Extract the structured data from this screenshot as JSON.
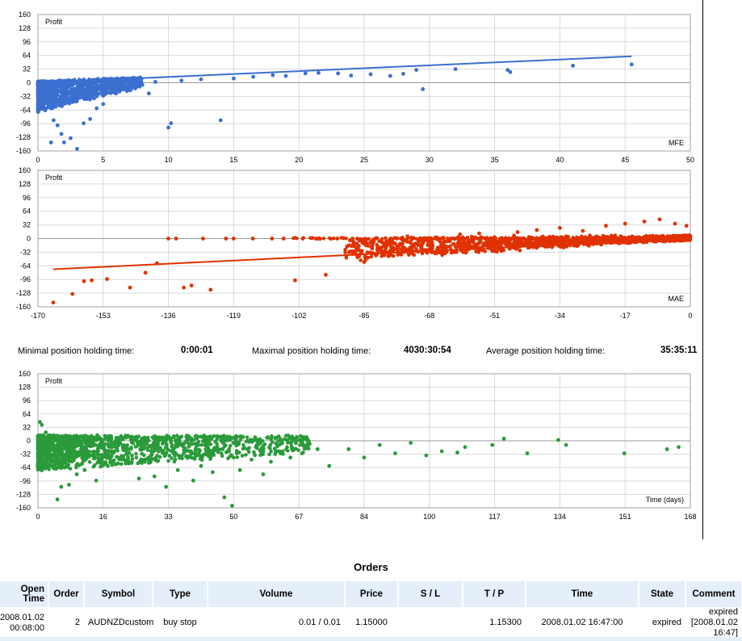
{
  "charts": [
    {
      "key": "mfe",
      "ylabel": "Profit",
      "xlabel": "MFE",
      "color": "#3b6fd0",
      "x_ticks": [
        "0",
        "5",
        "10",
        "15",
        "20",
        "25",
        "30",
        "35",
        "40",
        "45",
        "50"
      ],
      "y_ticks": [
        "160",
        "128",
        "96",
        "64",
        "32",
        "0",
        "-32",
        "-64",
        "-96",
        "-128",
        "-160"
      ]
    },
    {
      "key": "mae",
      "ylabel": "Profit",
      "xlabel": "MAE",
      "color": "#e03200",
      "x_ticks": [
        "-170",
        "-153",
        "-136",
        "-119",
        "-102",
        "-85",
        "-68",
        "-51",
        "-34",
        "-17",
        "0"
      ],
      "y_ticks": [
        "160",
        "128",
        "96",
        "64",
        "32",
        "0",
        "-32",
        "-64",
        "-96",
        "-128",
        "-160"
      ]
    },
    {
      "key": "time",
      "ylabel": "Profit",
      "xlabel": "Time (days)",
      "color": "#2a9a3a",
      "x_ticks": [
        "0",
        "16",
        "33",
        "50",
        "67",
        "84",
        "100",
        "117",
        "134",
        "151",
        "168"
      ],
      "y_ticks": [
        "160",
        "128",
        "96",
        "64",
        "32",
        "0",
        "-32",
        "-64",
        "-96",
        "-128",
        "-160"
      ]
    }
  ],
  "chart_data": [
    {
      "type": "scatter",
      "title": "",
      "xlabel": "MFE",
      "ylabel": "Profit",
      "xlim": [
        0,
        50
      ],
      "ylim": [
        -160,
        160
      ],
      "grid": true,
      "series": [
        {
          "points": [
            [
              0.5,
              -20
            ],
            [
              0.8,
              -45
            ],
            [
              1.0,
              -60
            ],
            [
              1.2,
              -88
            ],
            [
              1.5,
              -100
            ],
            [
              1.8,
              -120
            ],
            [
              2.0,
              -140
            ],
            [
              2.5,
              -130
            ],
            [
              3.0,
              -155
            ],
            [
              1.0,
              -140
            ],
            [
              3.5,
              -95
            ],
            [
              4.0,
              -85
            ],
            [
              4.5,
              -60
            ],
            [
              5.0,
              -50
            ],
            [
              6.0,
              -25
            ],
            [
              6.5,
              -15
            ],
            [
              7.0,
              -10
            ],
            [
              8.5,
              -25
            ],
            [
              10.0,
              -105
            ],
            [
              10.2,
              -95
            ],
            [
              14.0,
              -88
            ],
            [
              8.0,
              -5
            ],
            [
              9.0,
              2
            ],
            [
              11.0,
              5
            ],
            [
              12.5,
              8
            ],
            [
              15.0,
              10
            ],
            [
              16.5,
              14
            ],
            [
              18.0,
              18
            ],
            [
              19.0,
              16
            ],
            [
              20.5,
              22
            ],
            [
              21.5,
              23
            ],
            [
              23.0,
              22
            ],
            [
              24.0,
              17
            ],
            [
              25.5,
              20
            ],
            [
              27.0,
              16
            ],
            [
              28.0,
              21
            ],
            [
              29.0,
              30
            ],
            [
              29.5,
              -15
            ],
            [
              32.0,
              32
            ],
            [
              36.0,
              30
            ],
            [
              36.2,
              25
            ],
            [
              41.0,
              40
            ],
            [
              45.5,
              43
            ]
          ]
        }
      ],
      "trendline": [
        [
          0,
          0
        ],
        [
          45.5,
          62
        ]
      ]
    },
    {
      "type": "scatter",
      "title": "",
      "xlabel": "MAE",
      "ylabel": "Profit",
      "xlim": [
        -170,
        0
      ],
      "ylim": [
        -160,
        160
      ],
      "grid": true,
      "series": [
        {
          "points": [
            [
              -166,
              -150
            ],
            [
              -161,
              -130
            ],
            [
              -158,
              -100
            ],
            [
              -156,
              -98
            ],
            [
              -152,
              -95
            ],
            [
              -146,
              -115
            ],
            [
              -142,
              -80
            ],
            [
              -139,
              -58
            ],
            [
              -136,
              0
            ],
            [
              -134,
              0
            ],
            [
              -132,
              -115
            ],
            [
              -130,
              -110
            ],
            [
              -127,
              0
            ],
            [
              -125,
              -120
            ],
            [
              -121,
              0
            ],
            [
              -119,
              0
            ],
            [
              -114,
              0
            ],
            [
              -109,
              0
            ],
            [
              -106,
              0
            ],
            [
              -103,
              -98
            ],
            [
              -101,
              0
            ],
            [
              -97,
              0
            ],
            [
              -95,
              -85
            ],
            [
              -92,
              0
            ],
            [
              -88,
              0
            ],
            [
              -85,
              -55
            ],
            [
              -82,
              0
            ],
            [
              -78,
              0
            ],
            [
              -75,
              -30
            ],
            [
              -70,
              0
            ],
            [
              -66,
              -28
            ],
            [
              -60,
              10
            ],
            [
              -55,
              12
            ],
            [
              -50,
              -15
            ],
            [
              -45,
              15
            ],
            [
              -40,
              20
            ],
            [
              -34,
              25
            ],
            [
              -28,
              18
            ],
            [
              -22,
              30
            ],
            [
              -17,
              35
            ],
            [
              -12,
              40
            ],
            [
              -8,
              45
            ],
            [
              -4,
              35
            ],
            [
              -1,
              30
            ]
          ]
        }
      ],
      "trendline": [
        [
          -166,
          -72
        ],
        [
          0,
          0
        ]
      ]
    },
    {
      "type": "scatter",
      "title": "",
      "xlabel": "Time (days)",
      "ylabel": "Profit",
      "xlim": [
        0,
        168
      ],
      "ylim": [
        -160,
        160
      ],
      "grid": true,
      "series": [
        {
          "points": [
            [
              0.5,
              45
            ],
            [
              1,
              38
            ],
            [
              2,
              20
            ],
            [
              3,
              -20
            ],
            [
              4,
              -60
            ],
            [
              5,
              -140
            ],
            [
              6,
              -110
            ],
            [
              8,
              -105
            ],
            [
              10,
              -80
            ],
            [
              12,
              -70
            ],
            [
              15,
              -95
            ],
            [
              18,
              -60
            ],
            [
              22,
              -45
            ],
            [
              26,
              -90
            ],
            [
              30,
              -85
            ],
            [
              33,
              -110
            ],
            [
              36,
              -70
            ],
            [
              40,
              -95
            ],
            [
              42,
              -60
            ],
            [
              45,
              -75
            ],
            [
              48,
              -135
            ],
            [
              50,
              -155
            ],
            [
              52,
              -70
            ],
            [
              55,
              -45
            ],
            [
              58,
              -80
            ],
            [
              60,
              -50
            ],
            [
              62,
              -25
            ],
            [
              65,
              -40
            ],
            [
              68,
              -30
            ],
            [
              72,
              -20
            ],
            [
              75,
              -60
            ],
            [
              80,
              -20
            ],
            [
              84,
              -40
            ],
            [
              88,
              -10
            ],
            [
              92,
              -30
            ],
            [
              96,
              -5
            ],
            [
              100,
              -35
            ],
            [
              104,
              -25
            ],
            [
              108,
              -28
            ],
            [
              110,
              -15
            ],
            [
              117,
              -10
            ],
            [
              120,
              5
            ],
            [
              126,
              -30
            ],
            [
              134,
              2
            ],
            [
              136,
              -10
            ],
            [
              151,
              -30
            ],
            [
              162,
              -20
            ],
            [
              165,
              -15
            ]
          ]
        }
      ]
    }
  ],
  "stats": {
    "min_label": "Minimal position holding time:",
    "min_value": "0:00:01",
    "max_label": "Maximal position holding time:",
    "max_value": "4030:30:54",
    "avg_label": "Average position holding time:",
    "avg_value": "35:35:11"
  },
  "orders": {
    "title": "Orders",
    "columns": [
      "Open Time",
      "Order",
      "Symbol",
      "Type",
      "Volume",
      "Price",
      "S / L",
      "T / P",
      "Time",
      "State",
      "Comment"
    ],
    "row": {
      "open_time": "2008.01.02 00:08:00",
      "order": "2",
      "symbol": "AUDNZDcustom",
      "type": "buy stop",
      "volume": "0.01 / 0.01",
      "price": "1.15000",
      "sl": "",
      "tp": "1.15300",
      "time": "2008.01.02 16:47:00",
      "state": "expired",
      "comment": "expired [2008.01.02 16:47]"
    }
  }
}
